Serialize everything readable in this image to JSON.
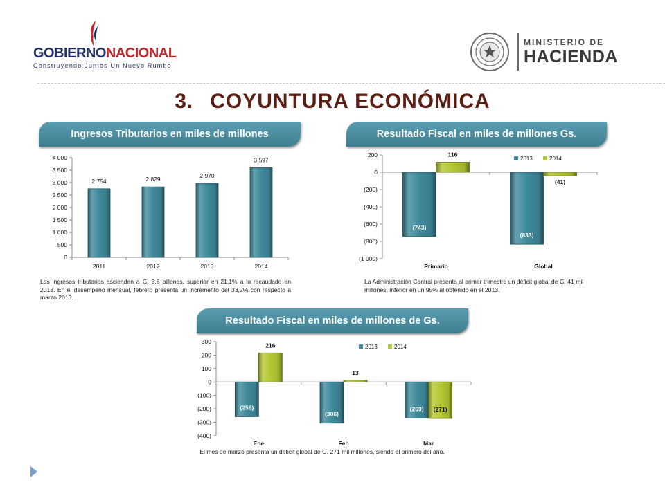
{
  "header": {
    "left_logo": {
      "name_part1": "GOBIERNO",
      "name_part2": "NACIONAL",
      "tagline": "Construyendo Juntos Un Nuevo Rumbo"
    },
    "right_logo": {
      "line1": "MINISTERIO DE",
      "line2": "HACIENDA"
    }
  },
  "page": {
    "number": "3.",
    "title": "COYUNTURA ECONÓMICA"
  },
  "colors": {
    "series_2013": "#3f8a9c",
    "series_2014": "#b5c832",
    "pill": "#4a8b9e",
    "title": "#5a1e14"
  },
  "panels": {
    "tax": {
      "title": "Ingresos Tributarios en miles de millones",
      "description": "Los ingresos tributarios ascienden a G. 3,6 billones, superior en 21,1% a lo recaudado en 2013. En el desempeño mensual, febrero presenta un incremento del 33,2% con respecto a marzo 2013."
    },
    "fiscal_annual": {
      "title": "Resultado Fiscal en miles de millones Gs.",
      "description": "La Administración Central presenta al primer trimestre un déficit global de G. 41 mil millones, inferior en un 95% al obtenido en el 2013."
    },
    "fiscal_monthly": {
      "title": "Resultado Fiscal en miles de millones de Gs.",
      "description": "El mes de marzo presenta un déficit global de G. 271 mil millones, siendo el primero del año."
    }
  },
  "chart_data": [
    {
      "type": "bar",
      "categories": [
        "2011",
        "2012",
        "2013",
        "2014"
      ],
      "values": [
        2754,
        2829,
        2970,
        3597
      ],
      "data_labels": [
        "2 754",
        "2 829",
        "2 970",
        "3 597"
      ],
      "ylim": [
        0,
        4000
      ],
      "yticks": [
        0,
        500,
        1000,
        1500,
        2000,
        2500,
        3000,
        3500,
        4000
      ],
      "ytick_labels": [
        "0",
        "500",
        "1 000",
        "1 500",
        "2 000",
        "2 500",
        "3 000",
        "3 500",
        "4 000"
      ],
      "grid": false,
      "legend": "none"
    },
    {
      "type": "bar",
      "categories": [
        "Primario",
        "Global"
      ],
      "series": [
        {
          "name": "2013",
          "values": [
            -743,
            -833
          ],
          "data_labels": [
            "(743)",
            "(833)"
          ]
        },
        {
          "name": "2014",
          "values": [
            116,
            -41
          ],
          "data_labels": [
            "116",
            "(41)"
          ]
        }
      ],
      "ylim": [
        -1000,
        200
      ],
      "yticks": [
        200,
        0,
        -200,
        -400,
        -600,
        -800,
        -1000
      ],
      "ytick_labels": [
        "200",
        "0",
        "(200)",
        "(400)",
        "(600)",
        "(800)",
        "(1 000)"
      ],
      "grid": false,
      "legend": "top-right"
    },
    {
      "type": "bar",
      "categories": [
        "Ene",
        "Feb",
        "Mar"
      ],
      "series": [
        {
          "name": "2013",
          "values": [
            -258,
            -306,
            -269
          ],
          "data_labels": [
            "(258)",
            "(306)",
            "(269)"
          ]
        },
        {
          "name": "2014",
          "values": [
            216,
            13,
            -271
          ],
          "data_labels": [
            "216",
            "13",
            "(271)"
          ]
        }
      ],
      "ylim": [
        -400,
        300
      ],
      "yticks": [
        300,
        200,
        100,
        0,
        -100,
        -200,
        -300,
        -400
      ],
      "ytick_labels": [
        "300",
        "200",
        "100",
        "0",
        "(100)",
        "(200)",
        "(300)",
        "(400)"
      ],
      "grid": false,
      "legend": "top-center"
    }
  ]
}
